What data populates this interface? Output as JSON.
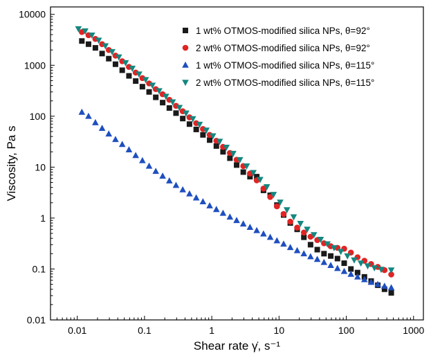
{
  "chart_data": {
    "type": "scatter",
    "title": "",
    "xlabel": "Shear rate γ̇, s⁻¹",
    "ylabel": "Viscosity, Pa s",
    "xscale": "log",
    "yscale": "log",
    "xlim": [
      0.004,
      1400
    ],
    "ylim": [
      0.01,
      14000
    ],
    "xticks": [
      0.01,
      0.1,
      1,
      10,
      100,
      1000
    ],
    "xtick_labels": [
      "0.01",
      "0.1",
      "1",
      "10",
      "100",
      "1000"
    ],
    "yticks": [
      0.01,
      0.1,
      1,
      10,
      100,
      1000,
      10000
    ],
    "ytick_labels": [
      "0.01",
      "0.1",
      "1",
      "10",
      "100",
      "1000",
      "10000"
    ],
    "grid": false,
    "legend_position": "top-right",
    "series": [
      {
        "name": "1 wt% OTMOS-modified silica NPs, θ=92°",
        "marker": "square",
        "color": "#1a1a1a",
        "x": [
          0.0117,
          0.0147,
          0.0186,
          0.0234,
          0.0294,
          0.037,
          0.0466,
          0.0587,
          0.0739,
          0.093,
          0.117,
          0.147,
          0.186,
          0.234,
          0.294,
          0.37,
          0.466,
          0.587,
          0.739,
          0.93,
          1.17,
          1.47,
          1.86,
          2.34,
          2.94,
          3.7,
          4.66,
          5.87,
          7.39,
          9.3,
          11.7,
          14.7,
          18.6,
          23.4,
          29.4,
          37,
          46.6,
          58.7,
          73.9,
          93,
          117,
          147,
          186,
          234,
          294,
          370,
          466
        ],
        "y": [
          3000,
          2600,
          2200,
          1700,
          1350,
          1050,
          800,
          620,
          490,
          380,
          300,
          235,
          185,
          145,
          115,
          90,
          70,
          55,
          43,
          34,
          26,
          20,
          15,
          11,
          8,
          6.5,
          6.5,
          3.5,
          2.8,
          1.8,
          1.15,
          0.8,
          0.6,
          0.42,
          0.3,
          0.24,
          0.2,
          0.18,
          0.16,
          0.13,
          0.1,
          0.085,
          0.07,
          0.058,
          0.048,
          0.04,
          0.034
        ]
      },
      {
        "name": "2 wt% OTMOS-modified silica NPs, θ=92°",
        "marker": "circle",
        "color": "#e02424",
        "x": [
          0.0117,
          0.0147,
          0.0186,
          0.0234,
          0.0294,
          0.037,
          0.0466,
          0.0587,
          0.0739,
          0.093,
          0.117,
          0.147,
          0.186,
          0.234,
          0.294,
          0.37,
          0.466,
          0.587,
          0.739,
          0.93,
          1.17,
          1.47,
          1.86,
          2.34,
          2.94,
          3.7,
          4.66,
          5.87,
          7.39,
          9.3,
          11.7,
          14.7,
          18.6,
          23.4,
          29.4,
          37,
          46.6,
          58.7,
          73.9,
          93,
          117,
          147,
          186,
          234,
          294,
          370,
          466
        ],
        "y": [
          4500,
          3900,
          3300,
          2600,
          2000,
          1550,
          1200,
          930,
          720,
          560,
          440,
          340,
          270,
          210,
          160,
          125,
          95,
          73,
          56,
          43,
          33,
          25,
          19,
          14,
          10.5,
          7.5,
          5.5,
          3.8,
          2.6,
          1.7,
          1.2,
          0.85,
          0.65,
          0.52,
          0.43,
          0.37,
          0.32,
          0.28,
          0.26,
          0.25,
          0.21,
          0.17,
          0.145,
          0.125,
          0.11,
          0.095,
          0.078
        ]
      },
      {
        "name": "1 wt% OTMOS-modified silica NPs, θ=115°",
        "marker": "triangle-up",
        "color": "#1f4fbf",
        "x": [
          0.0117,
          0.0147,
          0.0186,
          0.0234,
          0.0294,
          0.037,
          0.0466,
          0.0587,
          0.0739,
          0.093,
          0.117,
          0.147,
          0.186,
          0.234,
          0.294,
          0.37,
          0.466,
          0.587,
          0.739,
          0.93,
          1.17,
          1.47,
          1.86,
          2.34,
          2.94,
          3.7,
          4.66,
          5.87,
          7.39,
          9.3,
          11.7,
          14.7,
          18.6,
          23.4,
          29.4,
          37,
          46.6,
          58.7,
          73.9,
          93,
          117,
          147,
          186,
          234,
          294,
          370,
          466
        ],
        "y": [
          120,
          100,
          75,
          58,
          45,
          35,
          28,
          22,
          17,
          13.5,
          10.5,
          8.3,
          6.7,
          5.4,
          4.4,
          3.6,
          3,
          2.5,
          2.1,
          1.75,
          1.48,
          1.25,
          1.05,
          0.9,
          0.77,
          0.66,
          0.57,
          0.49,
          0.42,
          0.36,
          0.31,
          0.265,
          0.23,
          0.2,
          0.175,
          0.155,
          0.135,
          0.118,
          0.103,
          0.09,
          0.079,
          0.07,
          0.062,
          0.055,
          0.05,
          0.046,
          0.043
        ]
      },
      {
        "name": "2 wt% OTMOS-modified silica NPs, θ=115°",
        "marker": "triangle-down",
        "color": "#13877f",
        "x": [
          0.0104,
          0.0131,
          0.0165,
          0.0208,
          0.0262,
          0.033,
          0.0415,
          0.0523,
          0.0658,
          0.0829,
          0.104,
          0.131,
          0.165,
          0.208,
          0.262,
          0.33,
          0.415,
          0.523,
          0.658,
          0.829,
          1.04,
          1.31,
          1.65,
          2.08,
          2.62,
          3.3,
          4.15,
          5.23,
          6.58,
          8.29,
          10.4,
          13.1,
          16.5,
          20.8,
          26.2,
          33,
          41.5,
          52.3,
          65.8,
          82.9,
          104,
          131,
          165,
          208,
          262,
          330,
          466
        ],
        "y": [
          5200,
          4700,
          3900,
          3100,
          2400,
          1850,
          1450,
          1120,
          870,
          670,
          520,
          405,
          315,
          245,
          190,
          148,
          115,
          89,
          69,
          53,
          41,
          32,
          24.5,
          18.5,
          14,
          10.5,
          7.8,
          5.7,
          4.1,
          2.9,
          2.05,
          1.45,
          1.05,
          0.78,
          0.6,
          0.47,
          0.38,
          0.31,
          0.26,
          0.22,
          0.18,
          0.15,
          0.13,
          0.115,
          0.105,
          0.098,
          0.095
        ]
      }
    ]
  }
}
